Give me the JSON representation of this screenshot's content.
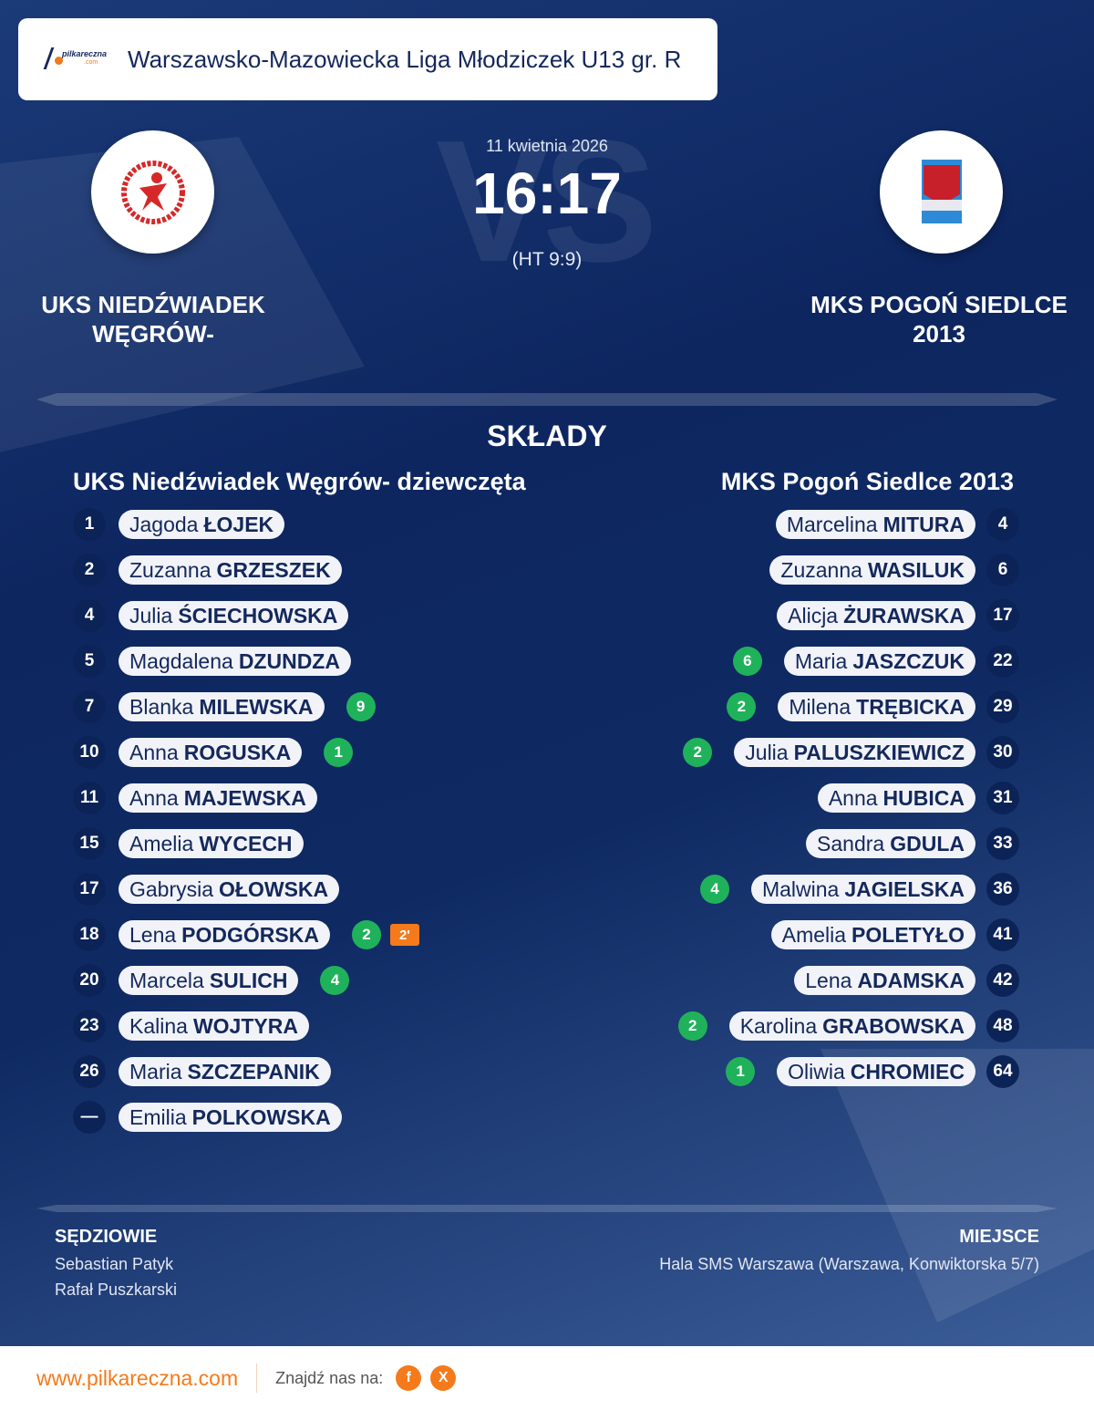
{
  "header": {
    "league": "Warszawsko-Mazowiecka Liga Młodziczek U13 gr. R",
    "logo_text": "pilkareczna .com"
  },
  "match": {
    "date": "11 kwietnia 2026",
    "score": "16:17",
    "halftime": "(HT 9:9)",
    "vs": "VS",
    "home": {
      "name": "UKS NIEDŹWIADEK WĘGRÓW-"
    },
    "away": {
      "name": "MKS POGOŃ SIEDLCE 2013"
    }
  },
  "lineups": {
    "title": "SKŁADY",
    "home": {
      "team": "UKS Niedźwiadek Węgrów- dziewczęta",
      "players": [
        {
          "num": "1",
          "first": "Jagoda",
          "last": "ŁOJEK"
        },
        {
          "num": "2",
          "first": "Zuzanna",
          "last": "GRZESZEK"
        },
        {
          "num": "4",
          "first": "Julia",
          "last": "ŚCIECHOWSKA"
        },
        {
          "num": "5",
          "first": "Magdalena",
          "last": "DZUNDZA"
        },
        {
          "num": "7",
          "first": "Blanka",
          "last": "MILEWSKA",
          "goals": "9"
        },
        {
          "num": "10",
          "first": "Anna",
          "last": "ROGUSKA",
          "goals": "1"
        },
        {
          "num": "11",
          "first": "Anna",
          "last": "MAJEWSKA"
        },
        {
          "num": "15",
          "first": "Amelia",
          "last": "WYCECH"
        },
        {
          "num": "17",
          "first": "Gabrysia",
          "last": "OŁOWSKA"
        },
        {
          "num": "18",
          "first": "Lena",
          "last": "PODGÓRSKA",
          "goals": "2",
          "suspension": "2'"
        },
        {
          "num": "20",
          "first": "Marcela",
          "last": "SULICH",
          "goals": "4"
        },
        {
          "num": "23",
          "first": "Kalina",
          "last": "WOJTYRA"
        },
        {
          "num": "26",
          "first": "Maria",
          "last": "SZCZEPANIK"
        },
        {
          "num": "—",
          "first": "Emilia",
          "last": "POLKOWSKA"
        }
      ]
    },
    "away": {
      "team": "MKS Pogoń Siedlce 2013",
      "players": [
        {
          "num": "4",
          "first": "Marcelina",
          "last": "MITURA"
        },
        {
          "num": "6",
          "first": "Zuzanna",
          "last": "WASILUK"
        },
        {
          "num": "17",
          "first": "Alicja",
          "last": "ŻURAWSKA"
        },
        {
          "num": "22",
          "first": "Maria",
          "last": "JASZCZUK",
          "goals": "6"
        },
        {
          "num": "29",
          "first": "Milena",
          "last": "TRĘBICKA",
          "goals": "2"
        },
        {
          "num": "30",
          "first": "Julia",
          "last": "PALUSZKIEWICZ",
          "goals": "2"
        },
        {
          "num": "31",
          "first": "Anna",
          "last": "HUBICA"
        },
        {
          "num": "33",
          "first": "Sandra",
          "last": "GDULA"
        },
        {
          "num": "36",
          "first": "Malwina",
          "last": "JAGIELSKA",
          "goals": "4"
        },
        {
          "num": "41",
          "first": "Amelia",
          "last": "POLETYŁO"
        },
        {
          "num": "42",
          "first": "Lena",
          "last": "ADAMSKA"
        },
        {
          "num": "48",
          "first": "Karolina",
          "last": "GRABOWSKA",
          "goals": "2"
        },
        {
          "num": "64",
          "first": "Oliwia",
          "last": "CHROMIEC",
          "goals": "1"
        }
      ]
    }
  },
  "referees": {
    "label": "SĘDZIOWIE",
    "names": [
      "Sebastian Patyk",
      "Rafał Puszkarski"
    ]
  },
  "venue": {
    "label": "MIEJSCE",
    "text": "Hala SMS Warszawa (Warszawa, Konwiktorska 5/7)"
  },
  "footer": {
    "site": "www.pilkareczna.com",
    "find": "Znajdź nas na:",
    "facebook": "f",
    "x": "X"
  },
  "colors": {
    "goal": "#20b25a",
    "suspension": "#f47a1b",
    "accent": "#f47a1b",
    "navy": "#14285c"
  }
}
